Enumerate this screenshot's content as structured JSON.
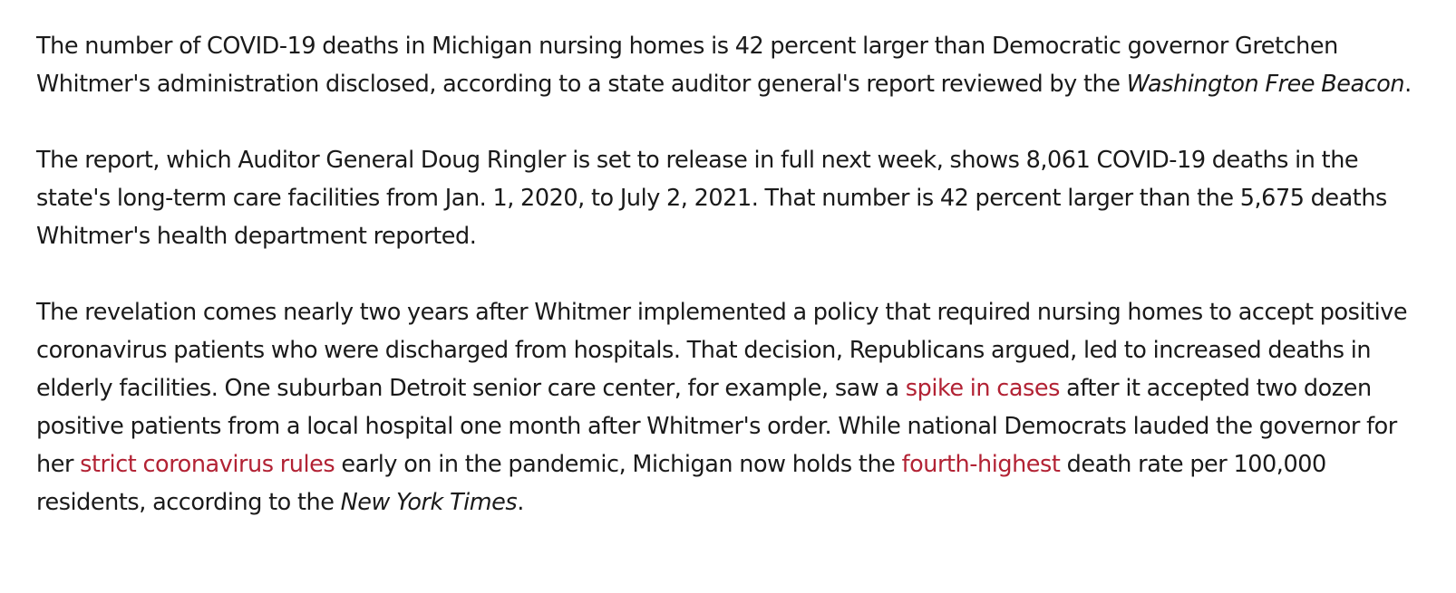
{
  "article": {
    "paragraph_1": {
      "text_a": "The number of COVID-19 deaths in Michigan nursing homes is 42 percent larger than Democratic governor Gretchen Whitmer's administration disclosed, according to a state auditor general's report reviewed by the ",
      "publication": "Washington Free Beacon",
      "text_b": "."
    },
    "paragraph_2": {
      "text": "The report, which Auditor General Doug Ringler is set to release in full next week, shows 8,061 COVID-19 deaths in the state's long-term care facilities from Jan. 1, 2020, to July 2, 2021. That number is 42 percent larger than the 5,675 deaths Whitmer's health department reported."
    },
    "paragraph_3": {
      "text_a": "The revelation comes nearly two years after Whitmer implemented a policy that required nursing homes to accept positive coronavirus patients who were discharged from hospitals. That decision, Republicans argued, led to increased deaths in elderly facilities. One suburban Detroit senior care center, for example, saw a ",
      "link_1": "spike in cases",
      "text_b": " after it accepted two dozen positive patients from a local hospital one month after Whitmer's order. While national Democrats lauded the governor for her ",
      "link_2": "strict coronavirus rules",
      "text_c": " early on in the pandemic, Michigan now holds the ",
      "link_3": "fourth-highest",
      "text_d": " death rate per 100,000 residents, according to the ",
      "publication": "New York Times",
      "text_e": "."
    }
  },
  "colors": {
    "text": "#1a1a1a",
    "link": "#b22234",
    "background": "#ffffff"
  }
}
